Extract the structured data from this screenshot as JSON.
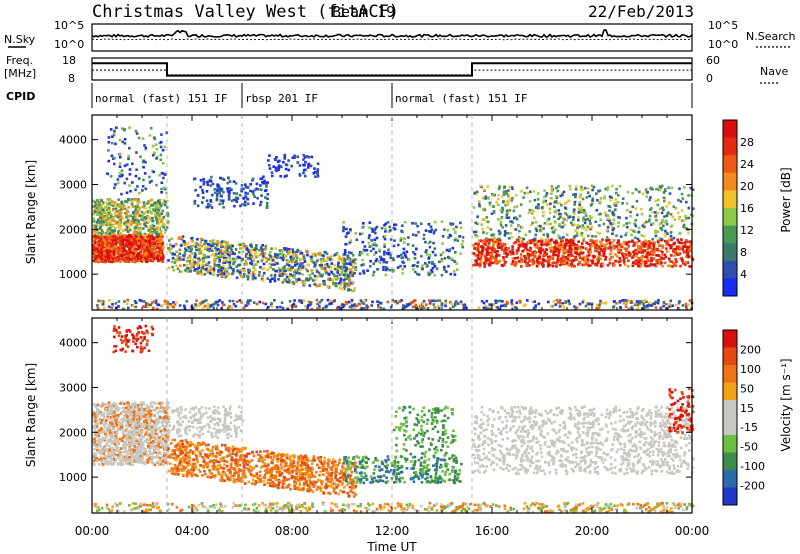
{
  "header": {
    "title": "Christmas Valley West (fitACF)",
    "beam": "Beam 19",
    "date": "22/Feb/2013"
  },
  "colors": {
    "power": [
      "#1a2cf0",
      "#2e4fb0",
      "#3d7a6e",
      "#4a9a55",
      "#8fc84a",
      "#f2c22e",
      "#f28a1e",
      "#ec5a15",
      "#e52a10",
      "#d90f0f"
    ],
    "velocity": [
      "#2338c8",
      "#2a6ca8",
      "#3e8c4c",
      "#6cc040",
      "#c8c8c0",
      "#c8c8c0",
      "#f2a218",
      "#ef7417",
      "#e64814",
      "#d8100f"
    ]
  },
  "chart_data": [
    {
      "type": "line",
      "panel": "noise",
      "left_label": "N.Sky",
      "right_label": "N.Search",
      "left_ticks": [
        "10^5",
        "10^0"
      ],
      "right_ticks": [
        "10^5",
        "10^0"
      ]
    },
    {
      "type": "line",
      "panel": "frequency",
      "left_label_line1": "Freq.",
      "left_label_line2": "[MHz]",
      "right_label": "Nave",
      "left_ticks": [
        "18",
        "8"
      ],
      "right_ticks": [
        "60",
        "0"
      ],
      "x": [
        0,
        3.0,
        3.0,
        15.2,
        15.2,
        24
      ],
      "freq_mhz": [
        15.6,
        15.6,
        10.0,
        10.0,
        15.6,
        15.6
      ],
      "nave": [
        27,
        27,
        14,
        14,
        27,
        27
      ]
    },
    {
      "type": "table",
      "panel": "cpid",
      "label": "CPID",
      "segments": [
        {
          "label": "normal (fast) 151 IF",
          "start": 0,
          "end": 6
        },
        {
          "label": "rbsp 201 IF",
          "start": 6,
          "end": 12
        },
        {
          "label": "normal (fast) 151 IF",
          "start": 12,
          "end": 24
        }
      ]
    },
    {
      "type": "heatmap",
      "panel": "power",
      "ylabel": "Slant Range [km]",
      "colorbar_label": "Power [dB]",
      "colorbar_ticks": [
        "28",
        "24",
        "20",
        "16",
        "12",
        "8",
        "4"
      ],
      "y_ticks": [
        "4000",
        "3000",
        "2000",
        "1000"
      ],
      "ylim": [
        200,
        4550
      ],
      "xlim": [
        0,
        24
      ],
      "grid": false
    },
    {
      "type": "heatmap",
      "panel": "velocity",
      "ylabel": "Slant Range [km]",
      "colorbar_label": "Velocity [m s⁻¹]",
      "colorbar_ticks": [
        "200",
        "100",
        "50",
        "15",
        "-15",
        "-50",
        "-100",
        "-200"
      ],
      "y_ticks": [
        "4000",
        "3000",
        "2000",
        "1000"
      ],
      "ylim": [
        200,
        4550
      ],
      "xlim": [
        0,
        24
      ],
      "grid": false
    },
    {
      "type": "axis",
      "xlabel": "Time UT",
      "x_ticks": [
        "00:00",
        "04:00",
        "08:00",
        "12:00",
        "16:00",
        "20:00",
        "00:00"
      ]
    }
  ]
}
